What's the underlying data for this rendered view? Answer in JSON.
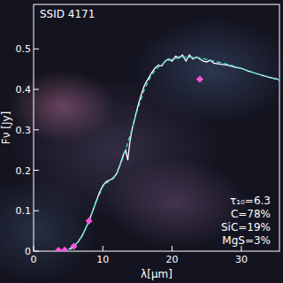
{
  "chart_data": {
    "type": "line",
    "title": "SSID 4171",
    "x_label": "λ[μm]",
    "y_label": "Fν [Jy]",
    "xlim": [
      0,
      35.5
    ],
    "ylim": [
      0,
      0.61
    ],
    "xticks": [
      0,
      10,
      20,
      30
    ],
    "yticks": [
      0,
      0.1,
      0.2,
      0.3,
      0.4,
      0.5
    ],
    "grid": false,
    "annotations": [
      "τ₁₀=6.3",
      "C=78%",
      "SiC=19%",
      "MgS=3%"
    ],
    "series": [
      {
        "type": "line",
        "color": "#ffffff",
        "line_style": "solid",
        "x": [
          5.2,
          5.6,
          6,
          6.5,
          7,
          7.5,
          8,
          8.5,
          9,
          9.5,
          10,
          10.5,
          11,
          11.5,
          12,
          12.5,
          13,
          13.3,
          13.6,
          13.9,
          14.2,
          14.5,
          15,
          15.5,
          16,
          16.5,
          17,
          17.5,
          18,
          18.5,
          19,
          19.5,
          20,
          20.5,
          21,
          21.5,
          22,
          22.5,
          23,
          23.5,
          24,
          24.5,
          25,
          25.5,
          26,
          27,
          28,
          29,
          30,
          31,
          32,
          33,
          34,
          35.3
        ],
        "values": [
          0.004,
          0.008,
          0.015,
          0.025,
          0.038,
          0.055,
          0.075,
          0.098,
          0.122,
          0.145,
          0.162,
          0.172,
          0.176,
          0.18,
          0.192,
          0.215,
          0.24,
          0.25,
          0.225,
          0.27,
          0.3,
          0.32,
          0.355,
          0.385,
          0.41,
          0.425,
          0.44,
          0.452,
          0.46,
          0.458,
          0.47,
          0.475,
          0.47,
          0.482,
          0.478,
          0.485,
          0.47,
          0.485,
          0.475,
          0.48,
          0.475,
          0.47,
          0.468,
          0.472,
          0.465,
          0.462,
          0.46,
          0.455,
          0.452,
          0.445,
          0.44,
          0.435,
          0.43,
          0.425
        ]
      },
      {
        "type": "line",
        "color": "#40e0d0",
        "line_style": "dashed",
        "x": [
          4,
          5,
          6,
          7,
          8,
          9,
          10,
          11,
          12,
          13,
          14,
          15,
          16,
          17,
          18,
          19,
          20,
          22,
          24,
          26,
          28,
          30,
          32,
          34,
          35.5
        ],
        "values": [
          0.001,
          0.005,
          0.015,
          0.038,
          0.075,
          0.12,
          0.16,
          0.175,
          0.19,
          0.235,
          0.29,
          0.35,
          0.4,
          0.435,
          0.455,
          0.468,
          0.475,
          0.48,
          0.478,
          0.47,
          0.462,
          0.452,
          0.44,
          0.43,
          0.422
        ]
      },
      {
        "type": "scatter",
        "color": "#ff55dd",
        "marker": "diamond",
        "x": [
          3.6,
          4.5,
          5.8,
          8,
          24
        ],
        "values": [
          0.002,
          0.003,
          0.012,
          0.075,
          0.425
        ]
      }
    ]
  }
}
